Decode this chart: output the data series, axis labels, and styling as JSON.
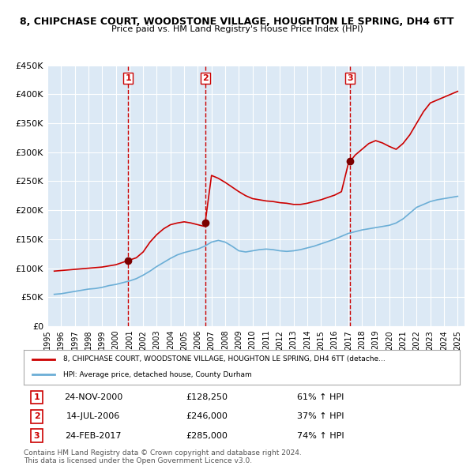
{
  "title": "8, CHIPCHASE COURT, WOODSTONE VILLAGE, HOUGHTON LE SPRING, DH4 6TT",
  "subtitle": "Price paid vs. HM Land Registry's House Price Index (HPI)",
  "bg_color": "#ffffff",
  "plot_bg_color": "#dce9f5",
  "grid_color": "#ffffff",
  "ylim": [
    0,
    450000
  ],
  "yticks": [
    0,
    50000,
    100000,
    150000,
    200000,
    250000,
    300000,
    350000,
    400000,
    450000
  ],
  "xlim_start": 1995.5,
  "xlim_end": 2025.5,
  "xticks": [
    1995,
    1996,
    1997,
    1998,
    1999,
    2000,
    2001,
    2002,
    2003,
    2004,
    2005,
    2006,
    2007,
    2008,
    2009,
    2010,
    2011,
    2012,
    2013,
    2014,
    2015,
    2016,
    2017,
    2018,
    2019,
    2020,
    2021,
    2022,
    2023,
    2024,
    2025
  ],
  "hpi_color": "#6baed6",
  "price_color": "#cc0000",
  "sale_marker_color": "#7b0000",
  "vline_color": "#cc0000",
  "transactions": [
    {
      "num": 1,
      "date_str": "24-NOV-2000",
      "date_x": 2000.9,
      "price": 128250,
      "pct": "61%",
      "dir": "↑"
    },
    {
      "num": 2,
      "date_str": "14-JUL-2006",
      "date_x": 2006.54,
      "price": 246000,
      "pct": "37%",
      "dir": "↑"
    },
    {
      "num": 3,
      "date_str": "24-FEB-2017",
      "date_x": 2017.15,
      "price": 285000,
      "pct": "74%",
      "dir": "↑"
    }
  ],
  "legend_label_price": "8, CHIPCHASE COURT, WOODSTONE VILLAGE, HOUGHTON LE SPRING, DH4 6TT (detache...",
  "legend_label_hpi": "HPI: Average price, detached house, County Durham",
  "footer1": "Contains HM Land Registry data © Crown copyright and database right 2024.",
  "footer2": "This data is licensed under the Open Government Licence v3.0.",
  "hpi_data": {
    "x": [
      1995.5,
      1996.0,
      1996.5,
      1997.0,
      1997.5,
      1998.0,
      1998.5,
      1999.0,
      1999.5,
      2000.0,
      2000.5,
      2001.0,
      2001.5,
      2002.0,
      2002.5,
      2003.0,
      2003.5,
      2004.0,
      2004.5,
      2005.0,
      2005.5,
      2006.0,
      2006.5,
      2007.0,
      2007.5,
      2008.0,
      2008.5,
      2009.0,
      2009.5,
      2010.0,
      2010.5,
      2011.0,
      2011.5,
      2012.0,
      2012.5,
      2013.0,
      2013.5,
      2014.0,
      2014.5,
      2015.0,
      2015.5,
      2016.0,
      2016.5,
      2017.0,
      2017.5,
      2018.0,
      2018.5,
      2019.0,
      2019.5,
      2020.0,
      2020.5,
      2021.0,
      2021.5,
      2022.0,
      2022.5,
      2023.0,
      2023.5,
      2024.0,
      2024.5,
      2025.0
    ],
    "y": [
      55000,
      56000,
      58000,
      60000,
      62000,
      64000,
      65000,
      67000,
      70000,
      72000,
      75000,
      78000,
      82000,
      88000,
      95000,
      103000,
      110000,
      117000,
      123000,
      127000,
      130000,
      133000,
      138000,
      145000,
      148000,
      145000,
      138000,
      130000,
      128000,
      130000,
      132000,
      133000,
      132000,
      130000,
      129000,
      130000,
      132000,
      135000,
      138000,
      142000,
      146000,
      150000,
      155000,
      160000,
      163000,
      166000,
      168000,
      170000,
      172000,
      174000,
      178000,
      185000,
      195000,
      205000,
      210000,
      215000,
      218000,
      220000,
      222000,
      224000
    ]
  },
  "price_data": {
    "x": [
      1995.5,
      1996.0,
      1996.5,
      1997.0,
      1997.5,
      1998.0,
      1998.5,
      1999.0,
      1999.5,
      2000.0,
      2000.5,
      2001.0,
      2001.5,
      2002.0,
      2002.5,
      2003.0,
      2003.5,
      2004.0,
      2004.5,
      2005.0,
      2005.5,
      2006.0,
      2006.5,
      2007.0,
      2007.5,
      2008.0,
      2008.5,
      2009.0,
      2009.5,
      2010.0,
      2010.5,
      2011.0,
      2011.5,
      2012.0,
      2012.5,
      2013.0,
      2013.5,
      2014.0,
      2014.5,
      2015.0,
      2015.5,
      2016.0,
      2016.5,
      2017.0,
      2017.5,
      2018.0,
      2018.5,
      2019.0,
      2019.5,
      2020.0,
      2020.5,
      2021.0,
      2021.5,
      2022.0,
      2022.5,
      2023.0,
      2023.5,
      2024.0,
      2024.5,
      2025.0
    ],
    "y": [
      95000,
      96000,
      97000,
      98000,
      99000,
      100000,
      101000,
      102000,
      104000,
      106000,
      110000,
      114000,
      118000,
      128000,
      145000,
      158000,
      168000,
      175000,
      178000,
      180000,
      178000,
      175000,
      172000,
      260000,
      255000,
      248000,
      240000,
      232000,
      225000,
      220000,
      218000,
      216000,
      215000,
      213000,
      212000,
      210000,
      210000,
      212000,
      215000,
      218000,
      222000,
      226000,
      232000,
      280000,
      295000,
      305000,
      315000,
      320000,
      316000,
      310000,
      305000,
      315000,
      330000,
      350000,
      370000,
      385000,
      390000,
      395000,
      400000,
      405000
    ]
  }
}
